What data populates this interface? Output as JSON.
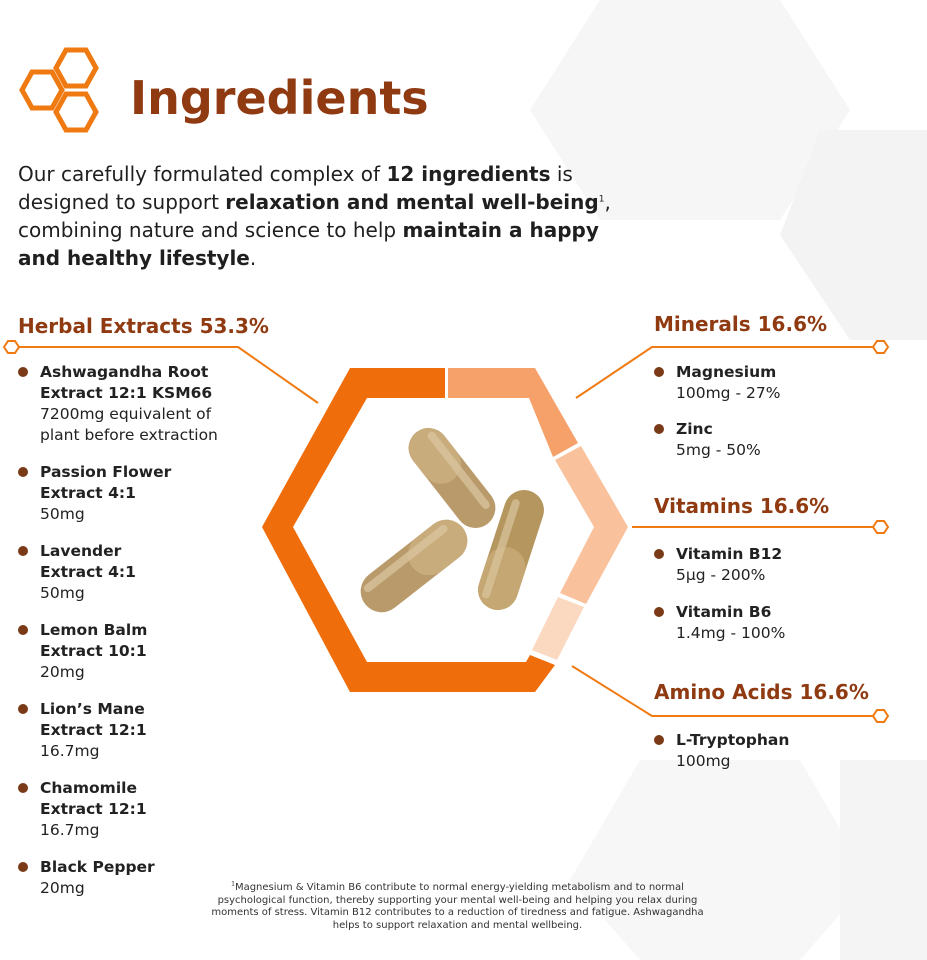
{
  "page_title": "Ingredients",
  "intro": {
    "p1": "Our carefully formulated complex of ",
    "b1": "12 ingredients",
    "p2": " is designed to support ",
    "b2": "relaxation and mental well-being",
    "sup": "1",
    "p3": ", combining nature and science to help ",
    "b3": "maintain a happy and healthy lifestyle",
    "p4": "."
  },
  "colors": {
    "brand": "#8f3a10",
    "accent": "#f07a12",
    "bullet": "#7a3a17",
    "seg_dark": "#ef6d0b",
    "seg_mid": "#f6a06a",
    "seg_light": "#f9c29d",
    "seg_pale": "#fbd9c1"
  },
  "icons": {
    "logo": "honeycomb-icon",
    "bullet": "bullet-dot-icon"
  },
  "chart_data": {
    "type": "pie",
    "categories": [
      "Herbal Extracts",
      "Minerals",
      "Vitamins",
      "Amino Acids"
    ],
    "values": [
      53.3,
      16.6,
      16.6,
      16.6
    ]
  },
  "sections": {
    "herbal": {
      "title": "Herbal Extracts 53.3%",
      "items": [
        {
          "name": "Ashwagandha Root Extract 12:1 KSM66",
          "detail": "7200mg equivalent of plant before extraction"
        },
        {
          "name": "Passion Flower Extract 4:1",
          "detail": "50mg"
        },
        {
          "name": "Lavender Extract 4:1",
          "detail": "50mg"
        },
        {
          "name": "Lemon Balm Extract 10:1",
          "detail": "20mg"
        },
        {
          "name": "Lion’s Mane Extract 12:1",
          "detail": "16.7mg"
        },
        {
          "name": "Chamomile Extract 12:1",
          "detail": "16.7mg"
        },
        {
          "name": "Black Pepper",
          "detail": "20mg"
        }
      ]
    },
    "minerals": {
      "title": "Minerals 16.6%",
      "items": [
        {
          "name": "Magnesium",
          "detail": "100mg - 27%"
        },
        {
          "name": "Zinc",
          "detail": "5mg - 50%"
        }
      ]
    },
    "vitamins": {
      "title": "Vitamins 16.6%",
      "items": [
        {
          "name": "Vitamin B12",
          "detail": "5µg - 200%"
        },
        {
          "name": "Vitamin B6",
          "detail": "1.4mg - 100%"
        }
      ]
    },
    "amino": {
      "title": "Amino Acids 16.6%",
      "items": [
        {
          "name": "L-Tryptophan",
          "detail": "100mg"
        }
      ]
    }
  },
  "footnote": {
    "sup": "1",
    "text": "Magnesium & Vitamin B6 contribute to normal energy-yielding metabolism and to normal psychological function, thereby supporting your mental well-being and helping you relax during moments of stress. Vitamin B12 contributes to a reduction of tiredness and fatigue. Ashwagandha helps to support relaxation and mental wellbeing."
  }
}
